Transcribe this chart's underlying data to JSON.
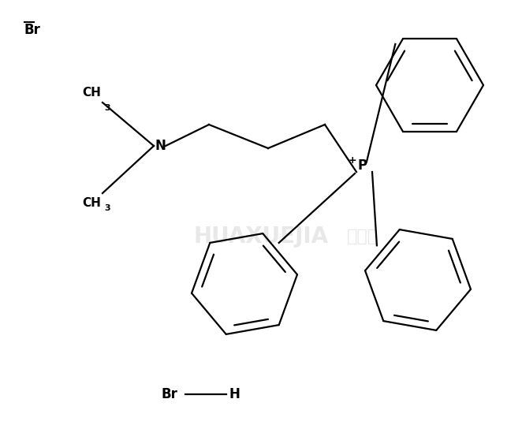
{
  "background_color": "#ffffff",
  "line_color": "#000000",
  "line_width": 1.6,
  "figsize": [
    6.62,
    5.58
  ],
  "dpi": 100,
  "xlim": [
    0,
    662
  ],
  "ylim": [
    0,
    558
  ]
}
